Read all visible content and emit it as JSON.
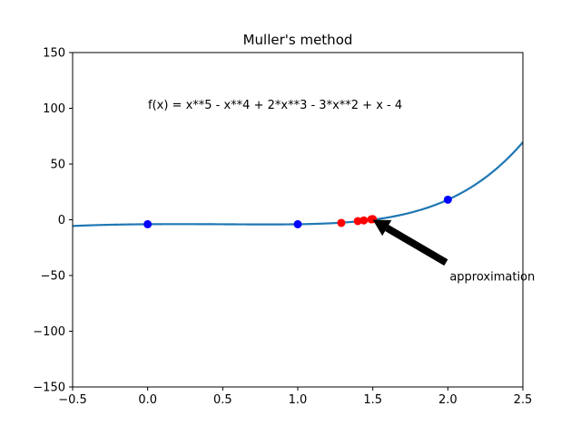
{
  "chart_data": {
    "type": "line",
    "title": "Muller's method",
    "xlabel": "",
    "ylabel": "",
    "xlim": [
      -0.5,
      2.5
    ],
    "ylim": [
      -150,
      150
    ],
    "xticks": [
      -0.5,
      0.0,
      0.5,
      1.0,
      1.5,
      2.0,
      2.5
    ],
    "xtick_labels": [
      "−0.5",
      "0.0",
      "0.5",
      "1.0",
      "1.5",
      "2.0",
      "2.5"
    ],
    "yticks": [
      -150,
      -100,
      -50,
      0,
      50,
      100,
      150
    ],
    "ytick_labels": [
      "−150",
      "−100",
      "−50",
      "0",
      "50",
      "100",
      "150"
    ],
    "grid": false,
    "function_label": "f(x) = x**5 - x**4 + 2*x**3 - 3*x**2 + x - 4",
    "curve": {
      "color": "#1f77b4",
      "coefficients": [
        1,
        -1,
        2,
        -3,
        1,
        -4
      ],
      "x_range": [
        -0.5,
        2.5
      ]
    },
    "series": [
      {
        "color": "#0000ff",
        "x": [
          0.0,
          1.0,
          2.0
        ],
        "y": [
          -4,
          -4,
          18
        ]
      },
      {
        "color": "#ff0000",
        "x": [
          1.29,
          1.4,
          1.44,
          1.49,
          1.5
        ],
        "y": [
          -2.8,
          -1.2,
          -0.6,
          0.4,
          0.6
        ]
      }
    ],
    "annotation": {
      "text": "approximation",
      "text_at": [
        2.0,
        -40
      ],
      "arrow_to": [
        1.5,
        0
      ]
    }
  }
}
